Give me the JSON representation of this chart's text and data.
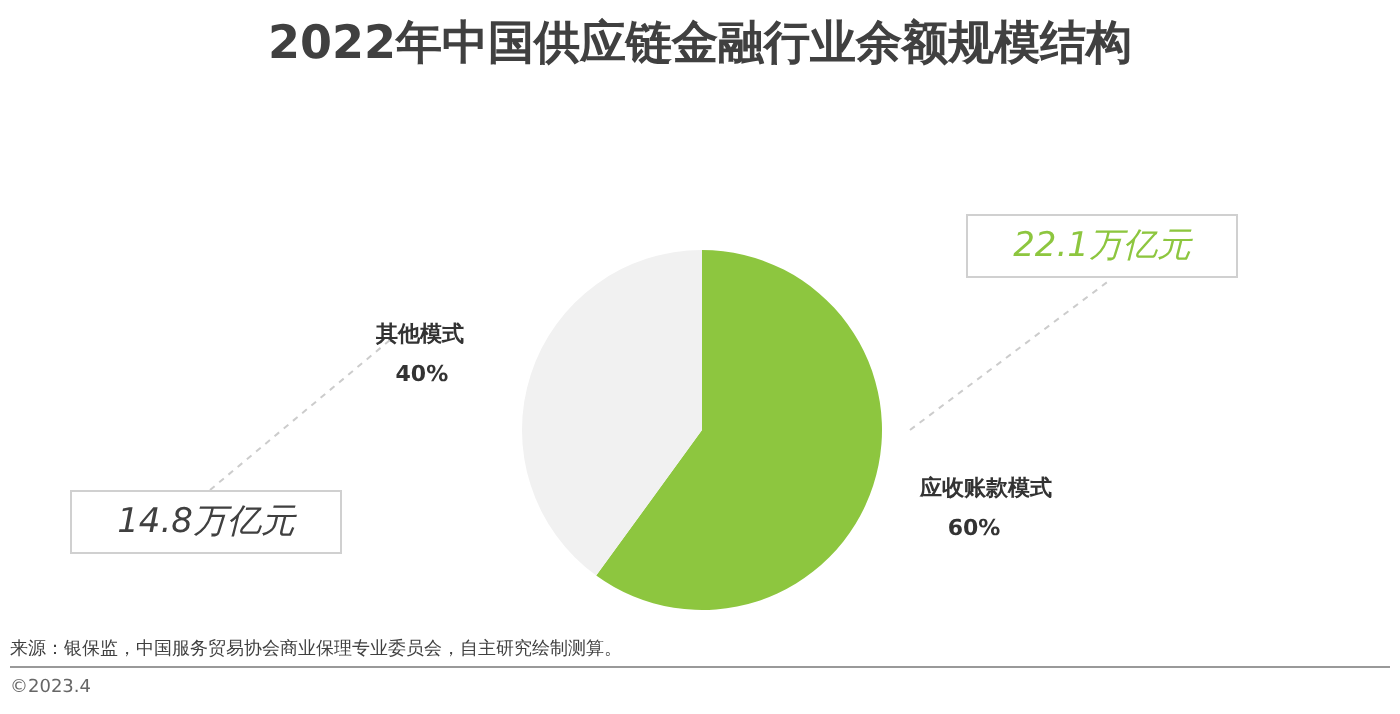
{
  "chart_data": {
    "type": "pie",
    "title": "2022年中国供应链金融行业余额规模结构",
    "categories": [
      "应收账款模式",
      "其他模式"
    ],
    "values": [
      60,
      40
    ],
    "colors": [
      "#8dc63f",
      "#f1f1f1"
    ],
    "value_labels": [
      "60%",
      "40%"
    ],
    "legend": false,
    "annotations": [
      "22.1万亿元",
      "14.8万亿元",
      "来源：银保监，中国服务贸易协会商业保理专业委员会，自主研究绘制测算。",
      "©2023.4"
    ]
  }
}
